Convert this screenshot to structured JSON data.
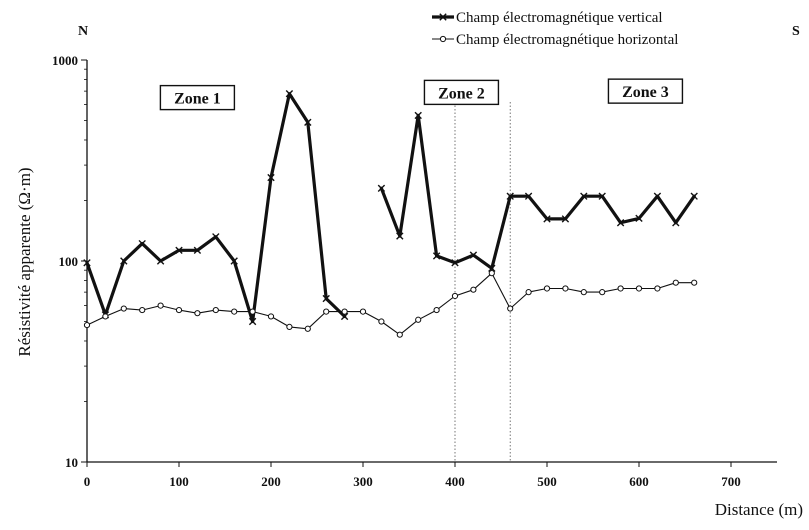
{
  "chart_data": {
    "type": "line",
    "title": "",
    "xlabel": "Distance (m)",
    "ylabel": "Résistivité apparente (Ω·m)",
    "xlim": [
      0,
      750
    ],
    "ylim": [
      10,
      1000
    ],
    "yscale": "log",
    "grid": false,
    "legend_position": "top-right",
    "x_ticks": [
      "0",
      "100",
      "200",
      "300",
      "400",
      "500",
      "600",
      "700"
    ],
    "y_ticks": [
      "10",
      "100",
      "1000"
    ],
    "corner_labels": {
      "left": "N",
      "right": "S"
    },
    "zones": [
      {
        "label": "Zone 1",
        "x_center": 120,
        "y": 650
      },
      {
        "label": "Zone 2",
        "x_center": 407,
        "y": 690
      },
      {
        "label": "Zone 3",
        "x_center": 607,
        "y": 700
      }
    ],
    "boundaries": [
      400,
      460
    ],
    "series": [
      {
        "name": "Champ électromagnétique vertical",
        "style": "thick-cross",
        "color": "#111111",
        "segments": [
          {
            "x": [
              0,
              20,
              40,
              60,
              80,
              100,
              120,
              140,
              160,
              180,
              200,
              220,
              240,
              260,
              280
            ],
            "y": [
              98,
              54,
              100,
              122,
              100,
              113,
              113,
              132,
              100,
              50,
              260,
              680,
              490,
              65,
              53
            ]
          },
          {
            "x": [
              320,
              340,
              360,
              380,
              400,
              420,
              440,
              460,
              480,
              500,
              520,
              540,
              560,
              580,
              600,
              620,
              640,
              660
            ],
            "y": [
              230,
              133,
              530,
              106,
              98,
              107,
              92,
              210,
              210,
              162,
              162,
              210,
              210,
              155,
              163,
              210,
              155,
              210
            ]
          }
        ]
      },
      {
        "name": "Champ électromagnétique horizontal",
        "style": "thin-circle",
        "color": "#111111",
        "segments": [
          {
            "x": [
              0,
              20,
              40,
              60,
              80,
              100,
              120,
              140,
              160,
              180,
              200,
              220,
              240,
              260,
              280,
              300,
              320,
              340,
              360,
              380,
              400,
              420,
              440,
              460,
              480,
              500,
              520,
              540,
              560,
              580,
              600,
              620,
              640,
              660
            ],
            "y": [
              48,
              53,
              58,
              57,
              60,
              57,
              55,
              57,
              56,
              56,
              53,
              47,
              46,
              56,
              56,
              56,
              50,
              43,
              51,
              57,
              67,
              72,
              87,
              58,
              70,
              73,
              73,
              70,
              70,
              73,
              73,
              73,
              78,
              78
            ]
          }
        ]
      }
    ]
  }
}
